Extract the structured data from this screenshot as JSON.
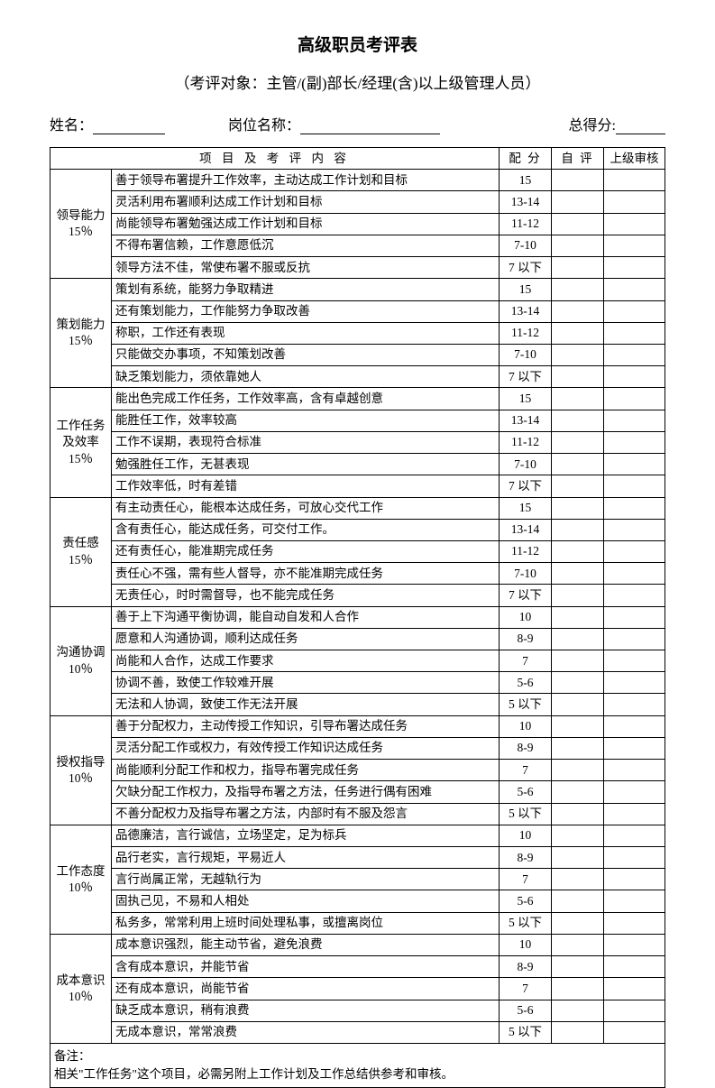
{
  "title": "高级职员考评表",
  "subtitle": "（考评对象：主管/(副)部长/经理(含)以上级管理人员）",
  "info": {
    "name_label": "姓名：",
    "position_label": "岗位名称：",
    "total_label": "总得分:"
  },
  "header": {
    "item": "项 目 及 考 评 内 容",
    "score": "配 分",
    "self": "自 评",
    "super": "上级审核"
  },
  "categories": [
    {
      "name": "领导能力\n15％",
      "rows": [
        {
          "desc": "善于领导布署提升工作效率，主动达成工作计划和目标",
          "score": "15"
        },
        {
          "desc": "灵活利用布署顺利达成工作计划和目标",
          "score": "13-14"
        },
        {
          "desc": "尚能领导布署勉强达成工作计划和目标",
          "score": "11-12"
        },
        {
          "desc": "不得布署信赖，工作意愿低沉",
          "score": "7-10"
        },
        {
          "desc": "领导方法不佳，常使布署不服或反抗",
          "score": "7 以下"
        }
      ]
    },
    {
      "name": "策划能力\n15％",
      "rows": [
        {
          "desc": "策划有系统，能努力争取精进",
          "score": "15"
        },
        {
          "desc": "还有策划能力，工作能努力争取改善",
          "score": "13-14"
        },
        {
          "desc": "称职，工作还有表现",
          "score": "11-12"
        },
        {
          "desc": "只能做交办事项，不知策划改善",
          "score": "7-10"
        },
        {
          "desc": "缺乏策划能力，须依靠她人",
          "score": "7 以下"
        }
      ]
    },
    {
      "name": "工作任务\n及效率\n15％",
      "rows": [
        {
          "desc": "能出色完成工作任务，工作效率高，含有卓越创意",
          "score": "15"
        },
        {
          "desc": "能胜任工作，效率较高",
          "score": "13-14"
        },
        {
          "desc": "工作不误期，表现符合标准",
          "score": "11-12"
        },
        {
          "desc": "勉强胜任工作，无甚表现",
          "score": "7-10"
        },
        {
          "desc": "工作效率低，时有差错",
          "score": "7 以下"
        }
      ]
    },
    {
      "name": "责任感\n15％",
      "rows": [
        {
          "desc": "有主动责任心，能根本达成任务，可放心交代工作",
          "score": "15"
        },
        {
          "desc": "含有责任心，能达成任务，可交付工作。",
          "score": "13-14"
        },
        {
          "desc": "还有责任心，能准期完成任务",
          "score": "11-12"
        },
        {
          "desc": "责任心不强，需有些人督导，亦不能准期完成任务",
          "score": "7-10"
        },
        {
          "desc": "无责任心，时时需督导，也不能完成任务",
          "score": "7 以下"
        }
      ]
    },
    {
      "name": "沟通协调\n10％",
      "rows": [
        {
          "desc": "善于上下沟通平衡协调，能自动自发和人合作",
          "score": "10"
        },
        {
          "desc": "愿意和人沟通协调，顺利达成任务",
          "score": "8-9"
        },
        {
          "desc": "尚能和人合作，达成工作要求",
          "score": "7"
        },
        {
          "desc": "协调不善，致使工作较难开展",
          "score": "5-6"
        },
        {
          "desc": "无法和人协调，致使工作无法开展",
          "score": "5 以下"
        }
      ]
    },
    {
      "name": "授权指导\n10％",
      "rows": [
        {
          "desc": "善于分配权力，主动传授工作知识，引导布署达成任务",
          "score": "10"
        },
        {
          "desc": "灵活分配工作或权力，有效传授工作知识达成任务",
          "score": "8-9"
        },
        {
          "desc": "尚能顺利分配工作和权力，指导布署完成任务",
          "score": "7"
        },
        {
          "desc": "欠缺分配工作权力，及指导布署之方法，任务进行偶有困难",
          "score": "5-6"
        },
        {
          "desc": "不善分配权力及指导布署之方法，内部时有不服及怨言",
          "score": "5 以下"
        }
      ]
    },
    {
      "name": "工作态度\n10％",
      "rows": [
        {
          "desc": "品德廉洁，言行诚信，立场坚定，足为标兵",
          "score": "10"
        },
        {
          "desc": "品行老实，言行规矩，平易近人",
          "score": "8-9"
        },
        {
          "desc": "言行尚属正常，无越轨行为",
          "score": "7"
        },
        {
          "desc": "固执己见，不易和人相处",
          "score": "5-6"
        },
        {
          "desc": "私务多，常常利用上班时间处理私事，或擅离岗位",
          "score": "5 以下"
        }
      ]
    },
    {
      "name": "成本意识\n10％",
      "rows": [
        {
          "desc": "成本意识强烈，能主动节省，避免浪费",
          "score": "10"
        },
        {
          "desc": "含有成本意识，并能节省",
          "score": "8-9"
        },
        {
          "desc": "还有成本意识，尚能节省",
          "score": "7"
        },
        {
          "desc": "缺乏成本意识，稍有浪费",
          "score": "5-6"
        },
        {
          "desc": "无成本意识，常常浪费",
          "score": "5 以下"
        }
      ]
    }
  ],
  "remark": "备注：\n相关\"工作任务\"这个项目，必需另附上工作计划及工作总结供参考和审核。"
}
